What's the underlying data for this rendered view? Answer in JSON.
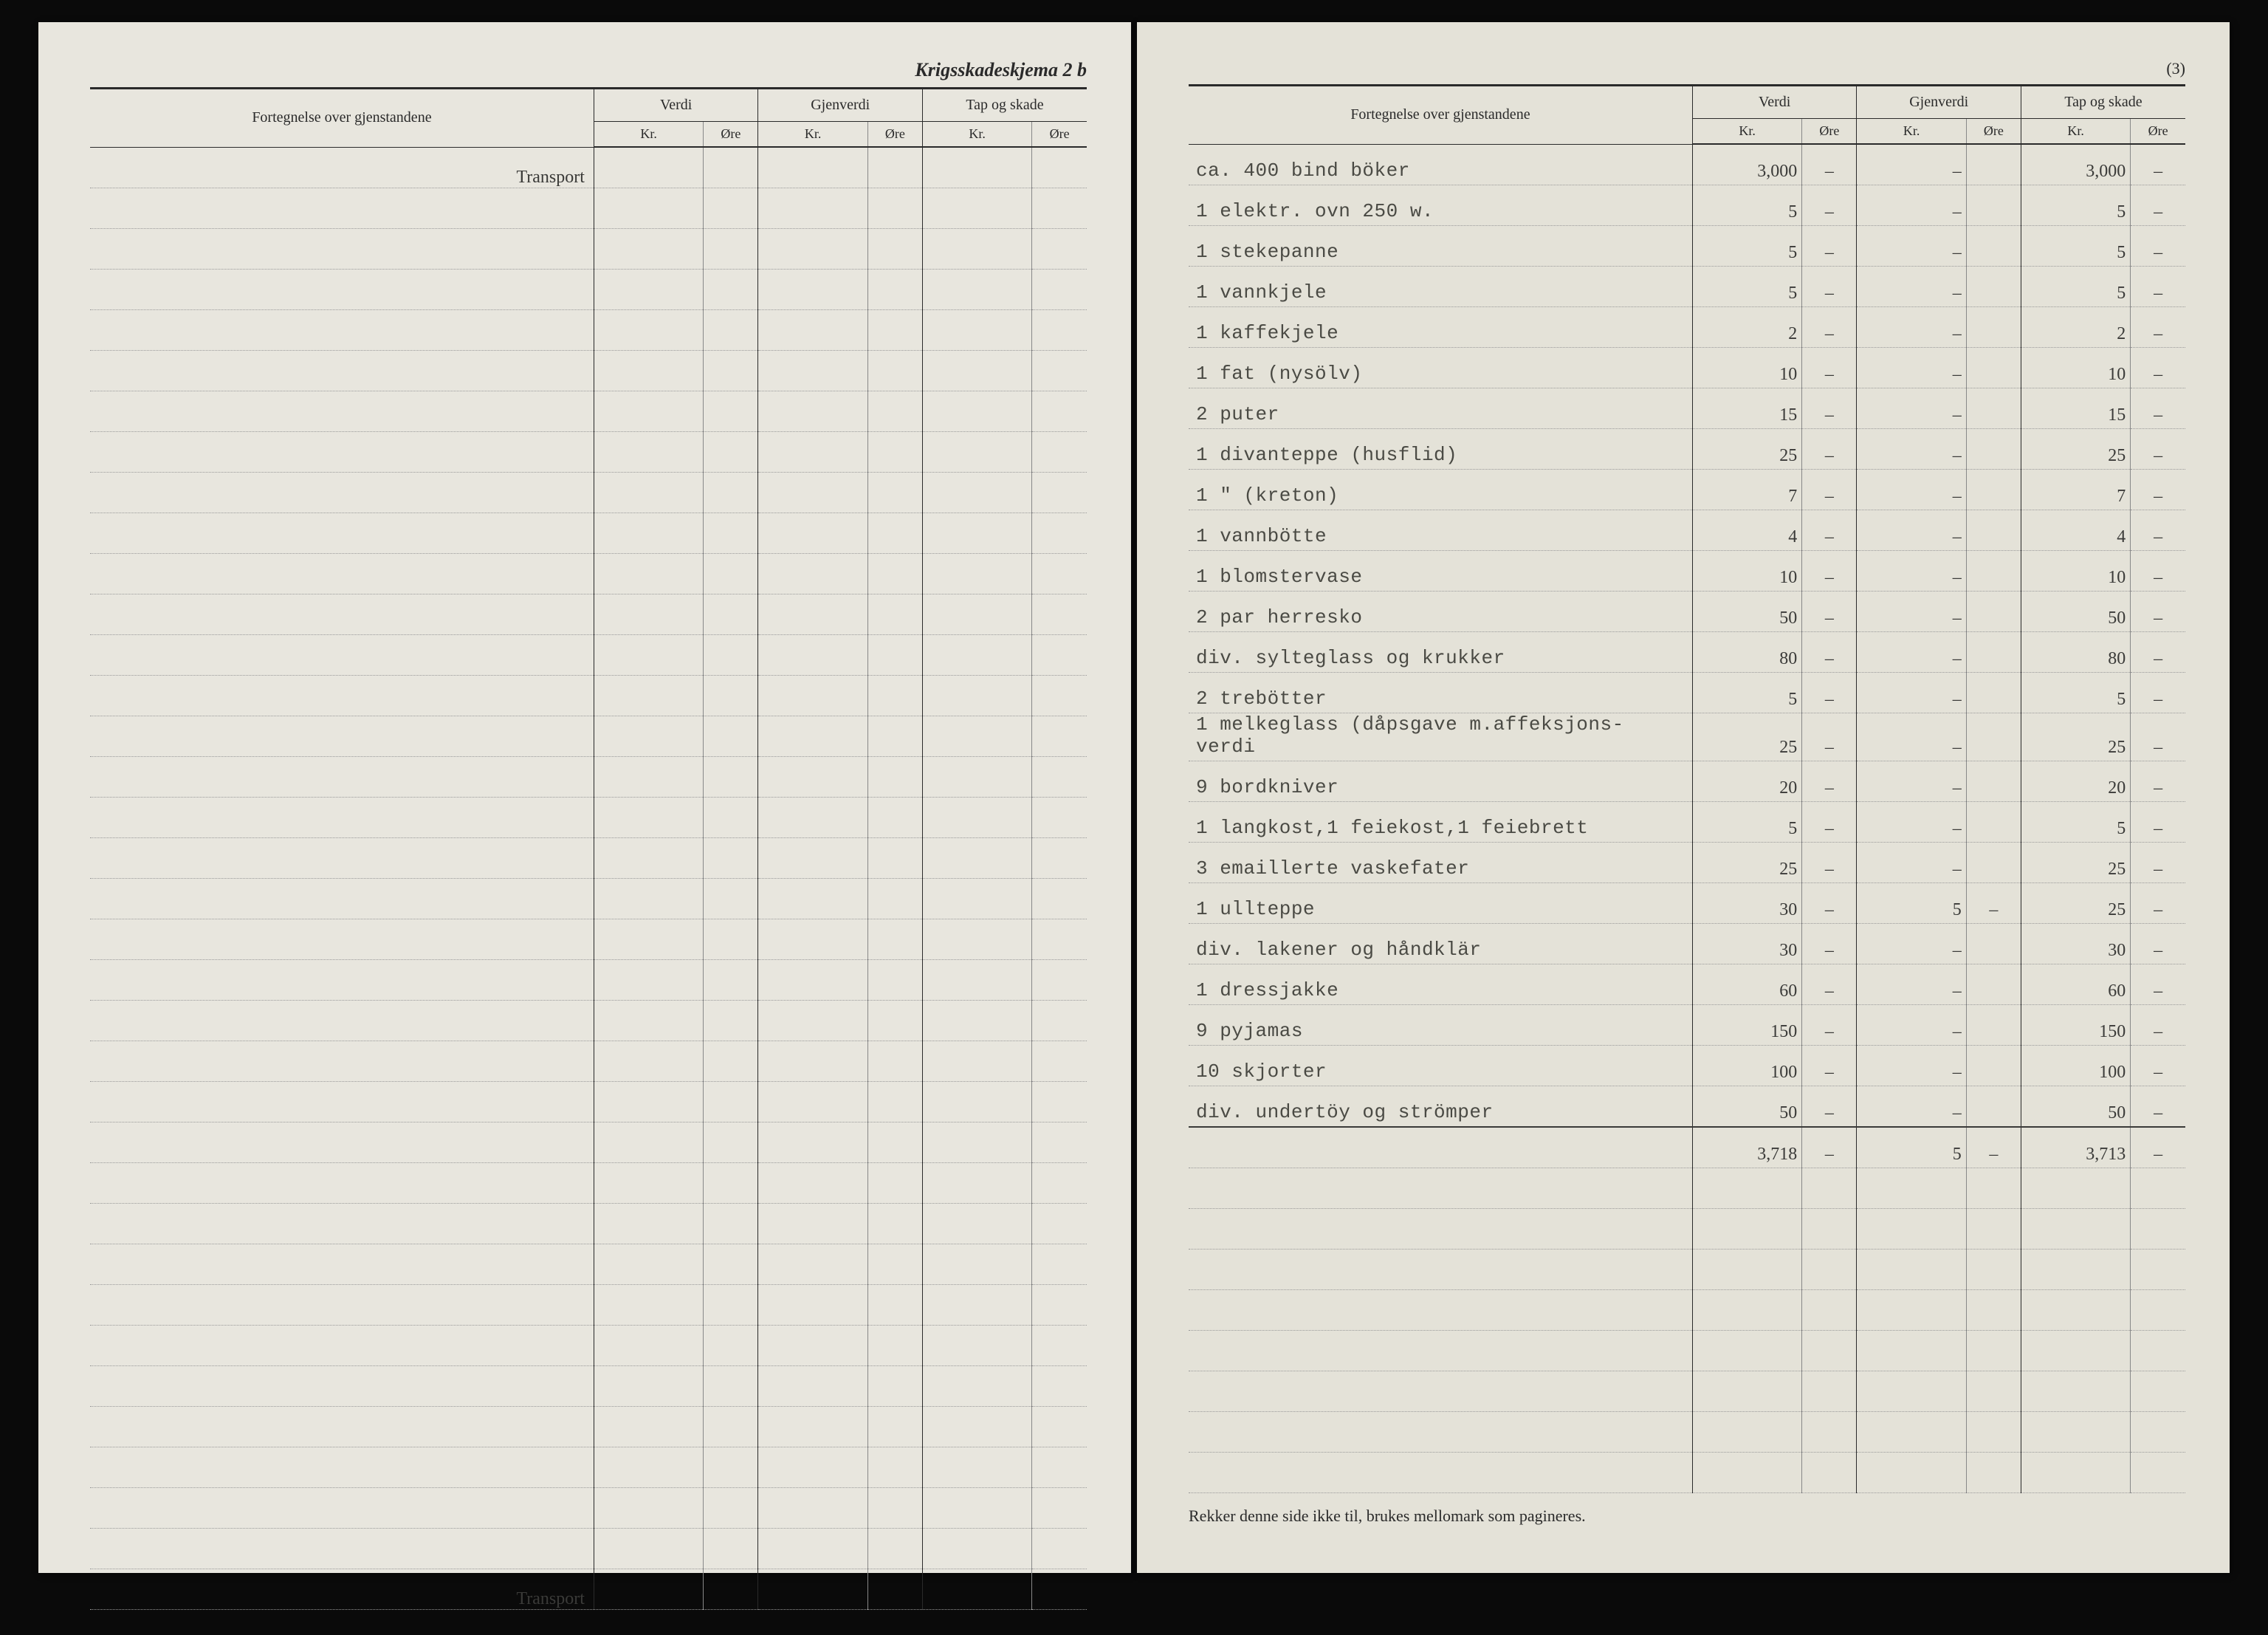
{
  "left": {
    "form_title": "Krigsskadeskjema 2 b",
    "headers": {
      "desc": "Fortegnelse over gjenstandene",
      "verdi": "Verdi",
      "gjenverdi": "Gjenverdi",
      "tap": "Tap og skade",
      "kr": "Kr.",
      "ore": "Øre"
    },
    "transport_label": "Transport",
    "empty_row_count": 34
  },
  "right": {
    "page_number": "(3)",
    "headers": {
      "desc": "Fortegnelse over gjenstandene",
      "verdi": "Verdi",
      "gjenverdi": "Gjenverdi",
      "tap": "Tap og skade",
      "kr": "Kr.",
      "ore": "Øre"
    },
    "rows": [
      {
        "desc": "ca. 400 bind böker",
        "v_kr": "3,000",
        "v_ore": "–",
        "g_kr": "–",
        "g_ore": "",
        "t_kr": "3,000",
        "t_ore": "–"
      },
      {
        "desc": "1 elektr. ovn 250 w.",
        "v_kr": "5",
        "v_ore": "–",
        "g_kr": "–",
        "g_ore": "",
        "t_kr": "5",
        "t_ore": "–"
      },
      {
        "desc": "1 stekepanne",
        "v_kr": "5",
        "v_ore": "–",
        "g_kr": "–",
        "g_ore": "",
        "t_kr": "5",
        "t_ore": "–"
      },
      {
        "desc": "1 vannkjele",
        "v_kr": "5",
        "v_ore": "–",
        "g_kr": "–",
        "g_ore": "",
        "t_kr": "5",
        "t_ore": "–"
      },
      {
        "desc": "1 kaffekjele",
        "v_kr": "2",
        "v_ore": "–",
        "g_kr": "–",
        "g_ore": "",
        "t_kr": "2",
        "t_ore": "–"
      },
      {
        "desc": "1 fat (nysölv)",
        "v_kr": "10",
        "v_ore": "–",
        "g_kr": "–",
        "g_ore": "",
        "t_kr": "10",
        "t_ore": "–"
      },
      {
        "desc": "2 puter",
        "v_kr": "15",
        "v_ore": "–",
        "g_kr": "–",
        "g_ore": "",
        "t_kr": "15",
        "t_ore": "–"
      },
      {
        "desc": "1 divanteppe (husflid)",
        "v_kr": "25",
        "v_ore": "–",
        "g_kr": "–",
        "g_ore": "",
        "t_kr": "25",
        "t_ore": "–"
      },
      {
        "desc": "1    \"    (kreton)",
        "v_kr": "7",
        "v_ore": "–",
        "g_kr": "–",
        "g_ore": "",
        "t_kr": "7",
        "t_ore": "–"
      },
      {
        "desc": "1 vannbötte",
        "v_kr": "4",
        "v_ore": "–",
        "g_kr": "–",
        "g_ore": "",
        "t_kr": "4",
        "t_ore": "–"
      },
      {
        "desc": "1 blomstervase",
        "v_kr": "10",
        "v_ore": "–",
        "g_kr": "–",
        "g_ore": "",
        "t_kr": "10",
        "t_ore": "–"
      },
      {
        "desc": "2 par herresko",
        "v_kr": "50",
        "v_ore": "–",
        "g_kr": "–",
        "g_ore": "",
        "t_kr": "50",
        "t_ore": "–"
      },
      {
        "desc": "div. sylteglass og krukker",
        "v_kr": "80",
        "v_ore": "–",
        "g_kr": "–",
        "g_ore": "",
        "t_kr": "80",
        "t_ore": "–"
      },
      {
        "desc": "2 trebötter",
        "v_kr": "5",
        "v_ore": "–",
        "g_kr": "–",
        "g_ore": "",
        "t_kr": "5",
        "t_ore": "–"
      },
      {
        "desc": "1 melkeglass (dåpsgave m.affeksjons- verdi",
        "v_kr": "25",
        "v_ore": "–",
        "g_kr": "–",
        "g_ore": "",
        "t_kr": "25",
        "t_ore": "–"
      },
      {
        "desc": "9 bordkniver",
        "v_kr": "20",
        "v_ore": "–",
        "g_kr": "–",
        "g_ore": "",
        "t_kr": "20",
        "t_ore": "–"
      },
      {
        "desc": "1 langkost,1 feiekost,1 feiebrett",
        "v_kr": "5",
        "v_ore": "–",
        "g_kr": "–",
        "g_ore": "",
        "t_kr": "5",
        "t_ore": "–"
      },
      {
        "desc": "  3 emaillerte vaskefater",
        "v_kr": "25",
        "v_ore": "–",
        "g_kr": "–",
        "g_ore": "",
        "t_kr": "25",
        "t_ore": "–"
      },
      {
        "desc": "1 ullteppe",
        "v_kr": "30",
        "v_ore": "–",
        "g_kr": "5",
        "g_ore": "–",
        "t_kr": "25",
        "t_ore": "–"
      },
      {
        "desc": "div. lakener og håndklär",
        "v_kr": "30",
        "v_ore": "–",
        "g_kr": "–",
        "g_ore": "",
        "t_kr": "30",
        "t_ore": "–"
      },
      {
        "desc": "1 dressjakke",
        "v_kr": "60",
        "v_ore": "–",
        "g_kr": "–",
        "g_ore": "",
        "t_kr": "60",
        "t_ore": "–"
      },
      {
        "desc": "9 pyjamas",
        "v_kr": "150",
        "v_ore": "–",
        "g_kr": "–",
        "g_ore": "",
        "t_kr": "150",
        "t_ore": "–"
      },
      {
        "desc": "10 skjorter",
        "v_kr": "100",
        "v_ore": "–",
        "g_kr": "–",
        "g_ore": "",
        "t_kr": "100",
        "t_ore": "–"
      },
      {
        "desc": "div. undertöy og strömper",
        "v_kr": "50",
        "v_ore": "–",
        "g_kr": "–",
        "g_ore": "",
        "t_kr": "50",
        "t_ore": "–"
      }
    ],
    "sum": {
      "v_kr": "3,718",
      "v_ore": "–",
      "g_kr": "5",
      "g_ore": "–",
      "t_kr": "3,713",
      "t_ore": "–"
    },
    "trailing_empty_rows": 8,
    "footer": "Rekker denne side ikke til, brukes mellomark som pagineres."
  },
  "style": {
    "bg": "#0a0a0a",
    "paper_left": "#e8e6de",
    "paper_right": "#e4e2d8",
    "ink": "#2a2a2a",
    "typed": "#4a4a44",
    "line": "#2a2a2a",
    "dotted": "#999999"
  }
}
